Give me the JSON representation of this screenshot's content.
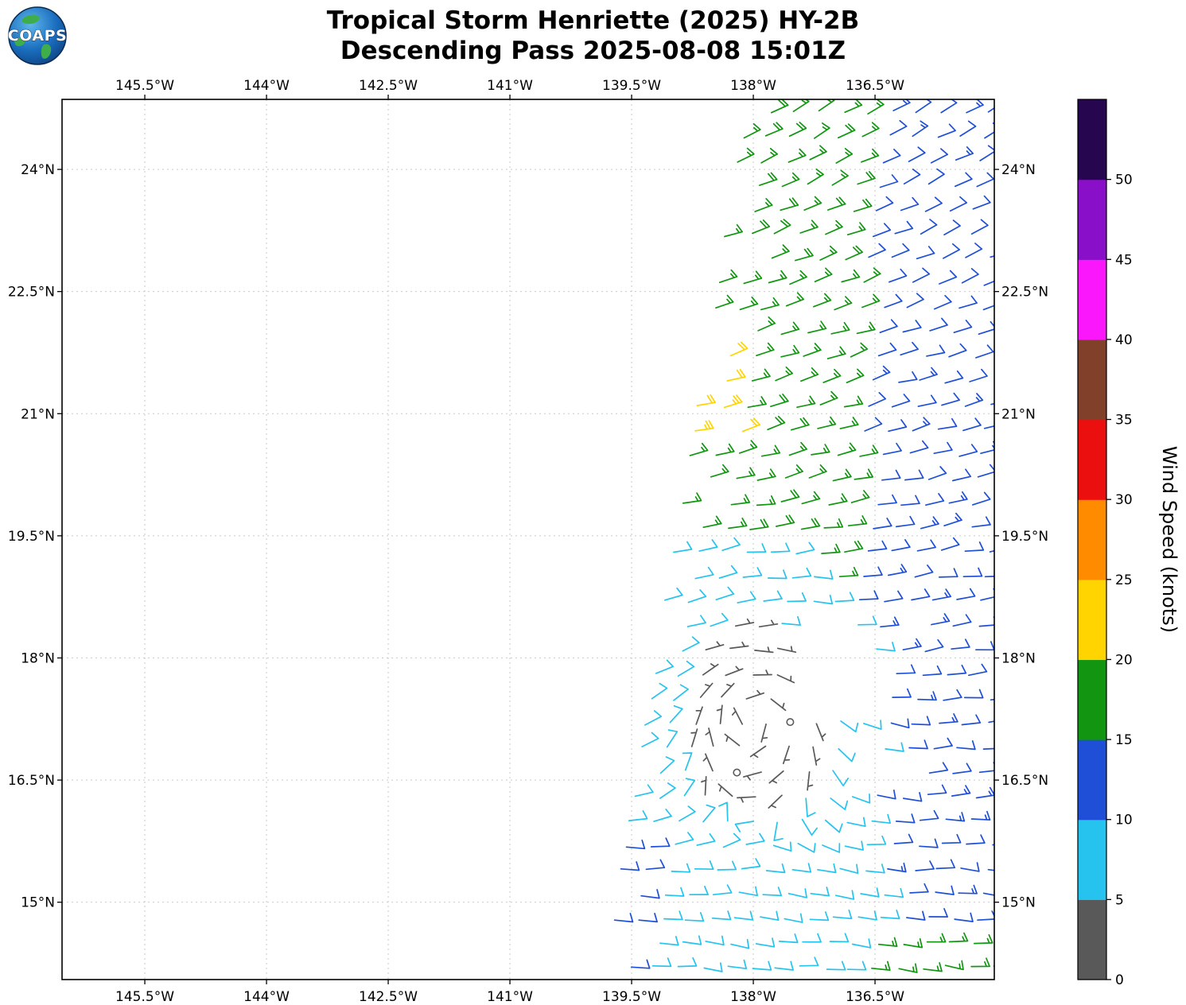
{
  "header": {
    "title_line1": "Tropical Storm Henriette (2025) HY-2B",
    "title_line2": "Descending Pass 2025-08-08 15:01Z",
    "logo_text": "COAPS"
  },
  "chart_data": {
    "type": "wind_barb_map",
    "title": "Tropical Storm Henriette (2025) HY-2B",
    "subtitle": "Descending Pass 2025-08-08 15:01Z",
    "satellite": "HY-2B",
    "pass_type": "Descending",
    "pass_time_utc": "2025-08-08 15:01Z",
    "storm": {
      "name": "Henriette",
      "year": "2025",
      "center_lat": 17.25,
      "center_lon": -138.0
    },
    "lon_range": [
      -146.52,
      -135.03
    ],
    "lat_range": [
      14.05,
      24.86
    ],
    "x_ticks": {
      "lons": [
        -145.5,
        -144,
        -142.5,
        -141,
        -139.5,
        -138,
        -136.5
      ],
      "labels": [
        "145.5°W",
        "144°W",
        "142.5°W",
        "141°W",
        "139.5°W",
        "138°W",
        "136.5°W"
      ]
    },
    "y_ticks": {
      "lats": [
        24,
        22.5,
        21,
        19.5,
        18,
        16.5,
        15
      ],
      "labels": [
        "24°N",
        "22.5°N",
        "21°N",
        "19.5°N",
        "18°N",
        "16.5°N",
        "15°N"
      ]
    },
    "grid_style": {
      "color": "#c9c9c9",
      "dash": "2 4"
    },
    "colorbar": {
      "label": "Wind Speed (knots)",
      "levels": [
        0,
        5,
        10,
        15,
        20,
        25,
        30,
        35,
        40,
        45,
        50,
        55
      ],
      "tick_labels": [
        "0",
        "5",
        "10",
        "15",
        "20",
        "25",
        "30",
        "35",
        "40",
        "45",
        "50"
      ],
      "colors": [
        "#595959",
        "#25C3EE",
        "#1E4FD6",
        "#129612",
        "#FFD400",
        "#FF8C00",
        "#EC0F0F",
        "#80402A",
        "#FB17FB",
        "#8A0FC8",
        "#26064E"
      ]
    },
    "wind_field": {
      "units": "knots",
      "grid_step_deg": 0.3,
      "swath": {
        "left_edge_lon_at_lat14": -139.85,
        "left_edge_slope_lon_per_lat": 0.165,
        "right_edge_lon": -135.0
      },
      "background": {
        "wind_from_deg_at_lat24_8": 62,
        "wind_from_deg_change_per_lat": 3.2,
        "speed_west_kt": 17,
        "speed_east_kt": 12,
        "green_blue_boundary_lon": -136.55,
        "boundary_slope": 0.03
      },
      "enhanced_patch": {
        "lat_min": 20.5,
        "lat_max": 21.8,
        "width_deg": 0.6,
        "speed_kt": 22
      },
      "light_wedge": {
        "lat_max": 19.45,
        "base_width_deg": 0.9,
        "widen_per_lat": 0.33,
        "speed_kt": 8
      },
      "south_band": {
        "lat_max": 16.15,
        "speed_kt": 8,
        "east_blue_lon": -136.35,
        "east_blue_speed_kt": 12,
        "se_green_lat_max": 14.75,
        "se_green_lon": -136.6,
        "se_green_speed_kt": 16,
        "sw_blue_width_deg": 0.55,
        "sw_blue_lat_max": 15.75,
        "sw_blue_speed_kt": 12
      },
      "storm_area": {
        "rotation": "counterclockwise",
        "lon_stretch": 1.3,
        "calm_core_radius_deg": 0.78,
        "calm_fraction": 0.35,
        "light_radius_deg": 1.25,
        "light_speed_kt": 4,
        "ring_radius_deg": 2.2,
        "ring_speed_kt": 8,
        "blend_radius_deg": 2.7
      },
      "data_gaps": [
        {
          "lat_min": 17.45,
          "lat_max": 18.4,
          "lon_min": -137.62,
          "lon_max": -136.5,
          "fraction": 1.0
        },
        {
          "lat_min": 16.3,
          "lat_max": 17.0,
          "lon_min": -136.9,
          "lon_max": -136.1,
          "fraction": 0.65
        },
        {
          "lat_min": 17.9,
          "lat_max": 18.45,
          "lon_min": -136.45,
          "lon_max": -135.6,
          "fraction": 0.5
        }
      ]
    }
  }
}
